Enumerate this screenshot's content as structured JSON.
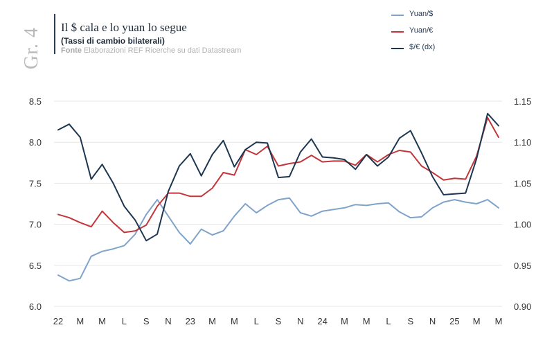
{
  "header": {
    "figure_label": "Gr. 4",
    "title": "Il $ cala e lo yuan lo segue",
    "subtitle": "(Tassi di cambio bilaterali)",
    "source_prefix": "Fonte",
    "source_text": " Elaborazioni REF Ricerche su dati Datastream"
  },
  "colors": {
    "yuan_usd": "#7fa3c9",
    "yuan_eur": "#c0363b",
    "usd_eur": "#1d3650",
    "grid": "#e6e6e6"
  },
  "chart_data": {
    "type": "line",
    "title": "Il $ cala e lo yuan lo segue",
    "subtitle": "(Tassi di cambio bilaterali)",
    "x_tick_labels": [
      "22",
      "M",
      "M",
      "L",
      "S",
      "N",
      "23",
      "M",
      "M",
      "L",
      "S",
      "N",
      "24",
      "M",
      "M",
      "L",
      "S",
      "N",
      "25",
      "M",
      "M"
    ],
    "left_axis": {
      "ylim": [
        6.0,
        8.5
      ],
      "ticks": [
        "8.5",
        "8.0",
        "7.5",
        "7.0",
        "6.5",
        "6.0"
      ]
    },
    "right_axis": {
      "ylim": [
        0.9,
        1.15
      ],
      "ticks": [
        "1.15",
        "1.10",
        "1.05",
        "1.00",
        "0.95",
        "0.90"
      ]
    },
    "legend_position": "top-right",
    "series": [
      {
        "name": "Yuan/$",
        "axis": "left",
        "values": [
          6.38,
          6.31,
          6.34,
          6.61,
          6.67,
          6.7,
          6.74,
          6.88,
          7.12,
          7.3,
          7.1,
          6.9,
          6.76,
          6.94,
          6.87,
          6.92,
          7.1,
          7.25,
          7.14,
          7.23,
          7.3,
          7.32,
          7.14,
          7.1,
          7.16,
          7.18,
          7.2,
          7.24,
          7.23,
          7.25,
          7.26,
          7.15,
          7.08,
          7.09,
          7.2,
          7.27,
          7.3,
          7.27,
          7.25,
          7.3,
          7.2
        ]
      },
      {
        "name": "Yuan/€",
        "axis": "left",
        "values": [
          7.12,
          7.08,
          7.02,
          6.97,
          7.16,
          7.02,
          6.9,
          6.92,
          6.99,
          7.22,
          7.38,
          7.38,
          7.34,
          7.34,
          7.44,
          7.63,
          7.6,
          7.91,
          7.85,
          7.95,
          7.71,
          7.74,
          7.76,
          7.84,
          7.76,
          7.77,
          7.77,
          7.72,
          7.85,
          7.76,
          7.85,
          7.9,
          7.88,
          7.71,
          7.63,
          7.54,
          7.56,
          7.55,
          7.83,
          8.3,
          8.06
        ]
      },
      {
        "name": "$/€ (dx)",
        "axis": "right",
        "values": [
          1.115,
          1.122,
          1.106,
          1.055,
          1.073,
          1.05,
          1.022,
          1.005,
          0.98,
          0.988,
          1.04,
          1.071,
          1.086,
          1.059,
          1.085,
          1.102,
          1.07,
          1.091,
          1.1,
          1.099,
          1.057,
          1.058,
          1.088,
          1.104,
          1.082,
          1.081,
          1.079,
          1.067,
          1.085,
          1.071,
          1.082,
          1.105,
          1.114,
          1.087,
          1.058,
          1.036,
          1.037,
          1.038,
          1.08,
          1.135,
          1.12
        ]
      }
    ]
  }
}
